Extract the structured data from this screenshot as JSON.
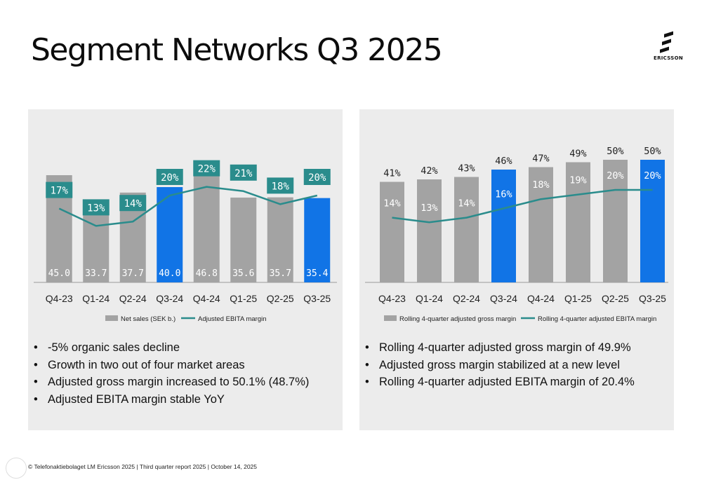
{
  "header": {
    "title": "Segment Networks Q3 2025",
    "logo_text": "ERICSSON"
  },
  "colors": {
    "bar_gray": "#a3a3a3",
    "bar_blue": "#1174e6",
    "line_teal": "#2a8c8c",
    "label_box_teal": "#2a8c8c",
    "panel_bg": "#ececec"
  },
  "chart_data": [
    {
      "type": "bar",
      "categories": [
        "Q4-23",
        "Q1-24",
        "Q2-24",
        "Q3-24",
        "Q4-24",
        "Q1-25",
        "Q2-25",
        "Q3-25"
      ],
      "series": [
        {
          "name": "Net sales (SEK b.)",
          "kind": "bar",
          "values": [
            45.0,
            33.7,
            37.7,
            40.0,
            46.8,
            35.6,
            35.7,
            35.4
          ],
          "labels": [
            "45.0",
            "33.7",
            "37.7",
            "40.0",
            "46.8",
            "35.6",
            "35.7",
            "35.4"
          ]
        },
        {
          "name": "Adjusted EBITA margin",
          "kind": "line",
          "values": [
            17,
            13,
            14,
            20,
            22,
            21,
            18,
            20
          ],
          "labels": [
            "17%",
            "13%",
            "14%",
            "20%",
            "22%",
            "21%",
            "18%",
            "20%"
          ]
        }
      ],
      "highlight": [
        "Q3-24",
        "Q3-25"
      ],
      "ylim_bar": [
        0,
        60
      ],
      "ylim_line": [
        0,
        30
      ],
      "legend": [
        "Net sales (SEK b.)",
        "Adjusted EBITA margin"
      ],
      "legend_position": "bottom"
    },
    {
      "type": "bar",
      "categories": [
        "Q4-23",
        "Q1-24",
        "Q2-24",
        "Q3-24",
        "Q4-24",
        "Q1-25",
        "Q2-25",
        "Q3-25"
      ],
      "series": [
        {
          "name": "Rolling 4-quarter adjusted gross margin",
          "kind": "bar",
          "values": [
            41,
            42,
            43,
            46,
            47,
            49,
            50,
            50
          ],
          "labels": [
            "41%",
            "42%",
            "43%",
            "46%",
            "47%",
            "49%",
            "50%",
            "50%"
          ]
        },
        {
          "name": "Rolling 4-quarter adjusted EBITA margin",
          "kind": "line",
          "values": [
            14,
            13,
            14,
            16,
            18,
            19,
            20,
            20
          ],
          "labels": [
            "14%",
            "13%",
            "14%",
            "16%",
            "18%",
            "19%",
            "20%",
            "20%"
          ]
        }
      ],
      "highlight": [
        "Q3-24",
        "Q3-25"
      ],
      "ylim_bar": [
        0,
        60
      ],
      "ylim_line": [
        0,
        60
      ],
      "legend": [
        "Rolling 4-quarter adjusted gross margin",
        "Rolling 4-quarter adjusted EBITA margin"
      ],
      "legend_position": "bottom"
    }
  ],
  "left_bullets": [
    "-5% organic sales decline",
    "Growth in two out of four market areas",
    "Adjusted gross margin increased to 50.1% (48.7%)",
    "Adjusted EBITA margin stable YoY"
  ],
  "right_bullets": [
    "Rolling 4-quarter adjusted gross margin of 49.9%",
    "Adjusted gross margin stabilized at a new level",
    "Rolling 4-quarter adjusted EBITA margin of 20.4%"
  ],
  "footer": {
    "text": "© Telefonaktiebolaget LM Ericsson 2025 | Third quarter report 2025 | October 14, 2025"
  }
}
